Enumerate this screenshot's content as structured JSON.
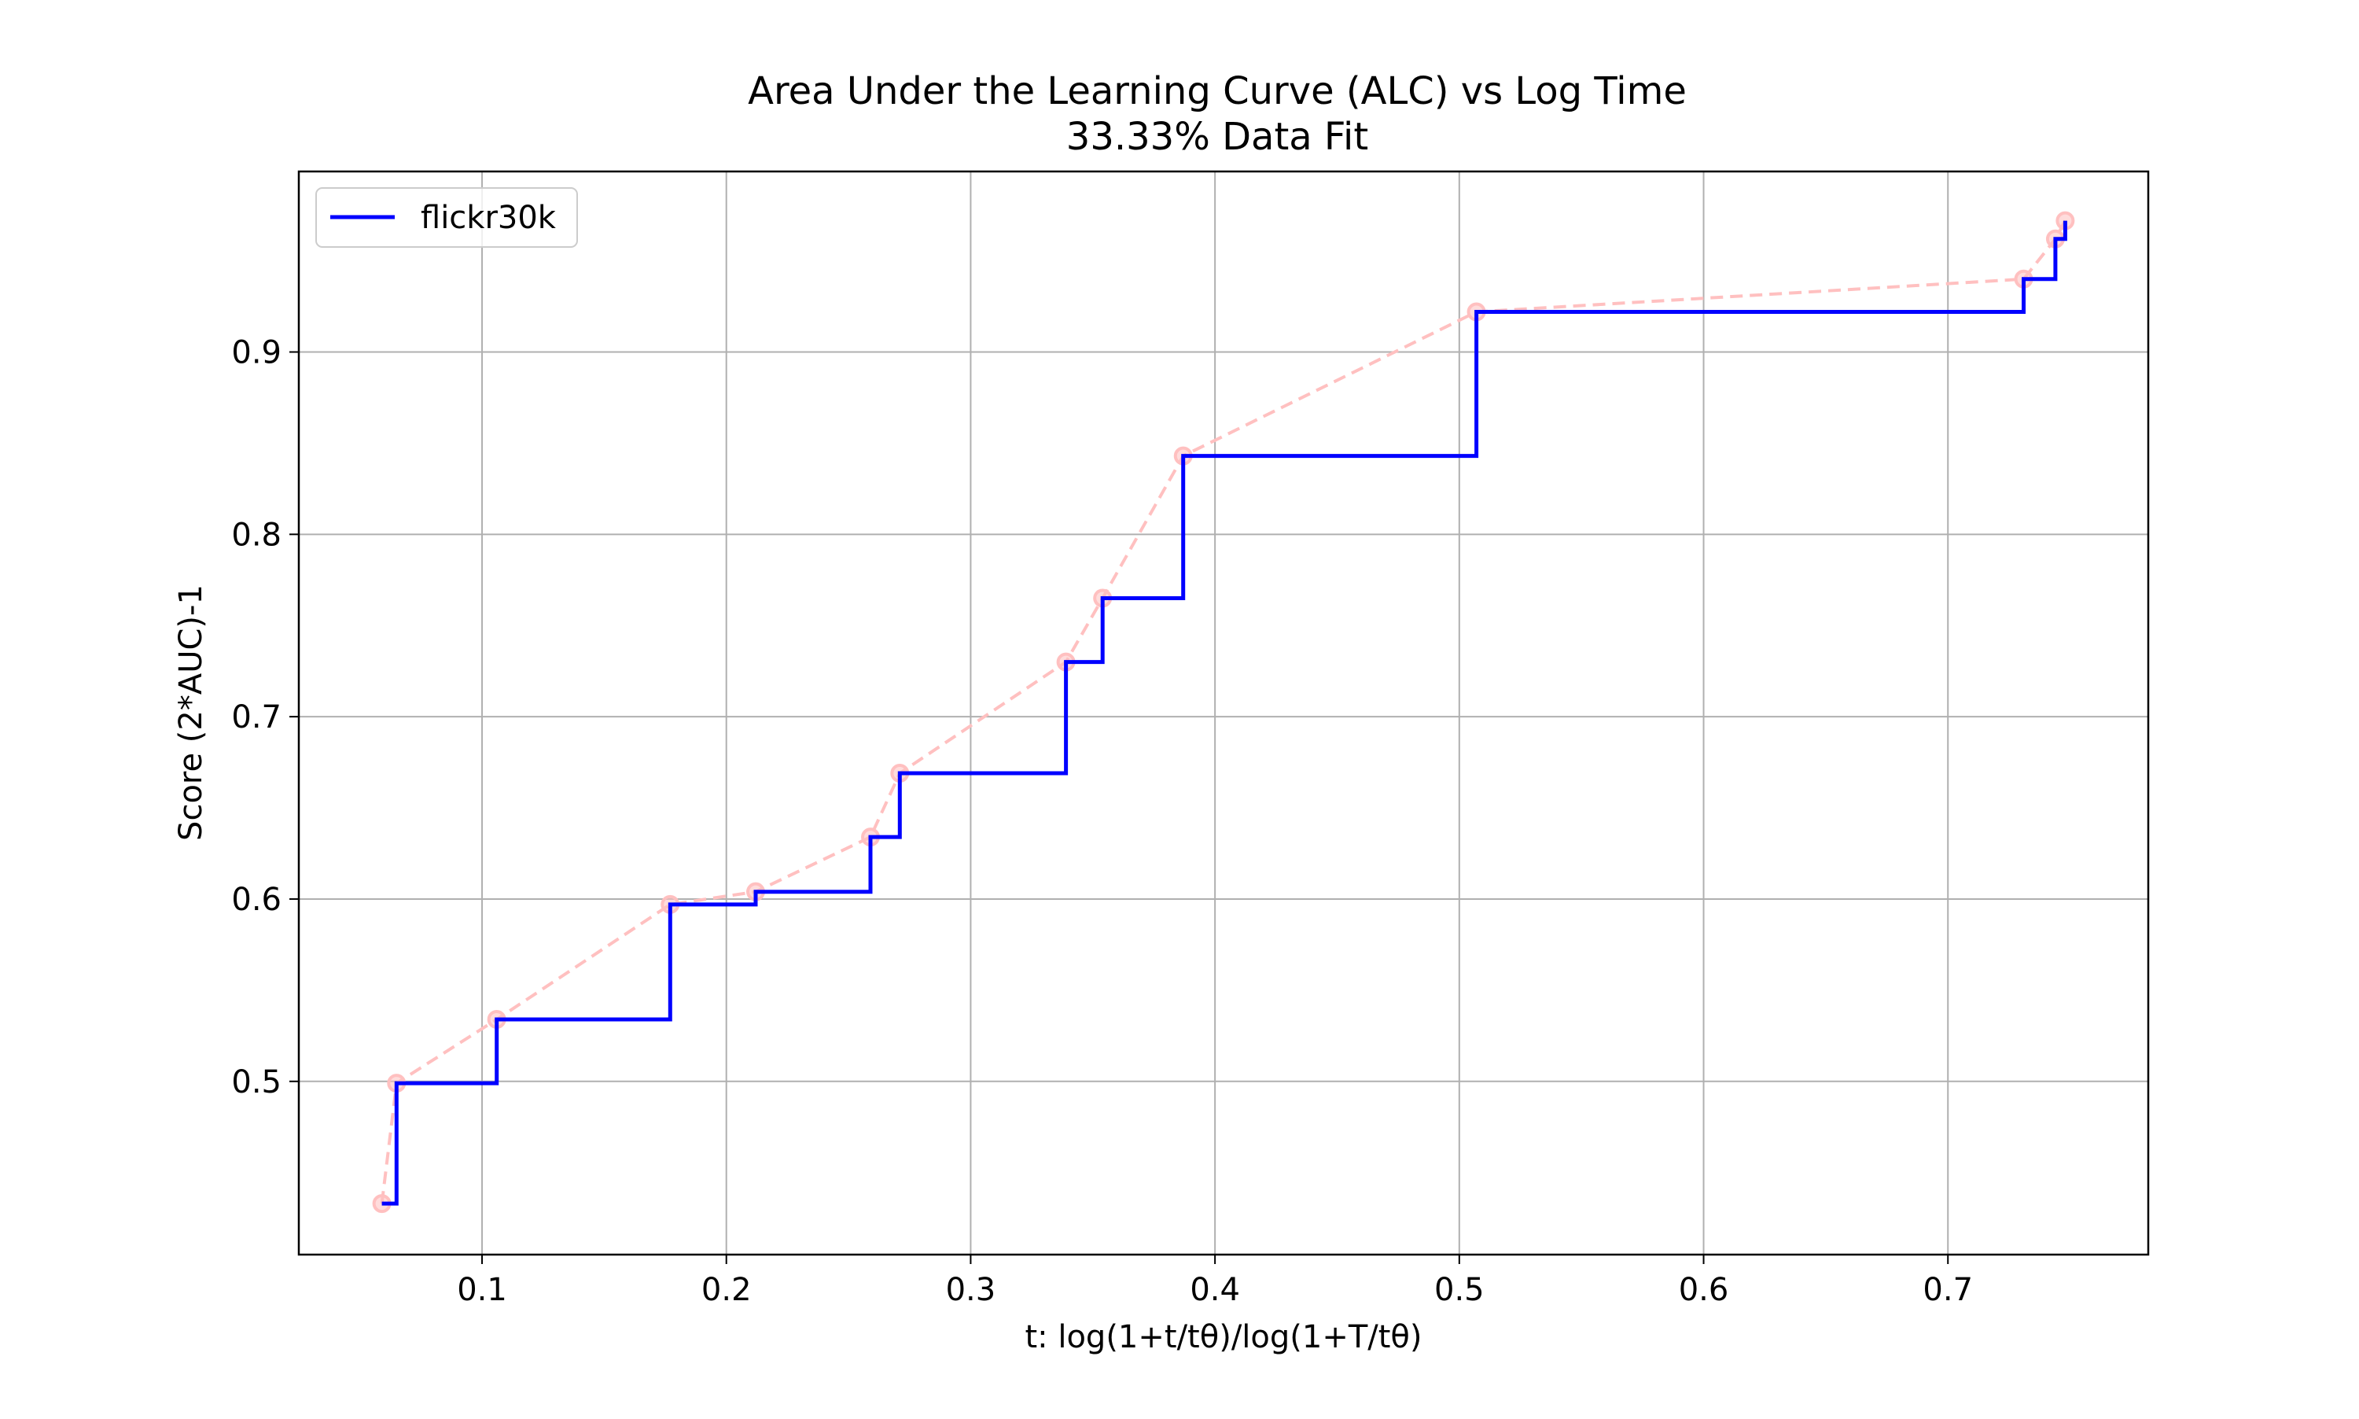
{
  "chart_data": {
    "type": "line",
    "title": "Area Under the Learning Curve (ALC) vs Log Time",
    "subtitle": "33.33% Data Fit",
    "xlabel": "t: log(1+t/tθ)/log(1+T/tθ)",
    "ylabel": "Score (2*AUC)-1",
    "xlim": [
      0.025,
      0.782
    ],
    "ylim": [
      0.405,
      0.999
    ],
    "xticks": [
      0.1,
      0.2,
      0.3,
      0.4,
      0.5,
      0.6,
      0.7
    ],
    "xtick_labels": [
      "0.1",
      "0.2",
      "0.3",
      "0.4",
      "0.5",
      "0.6",
      "0.7"
    ],
    "yticks": [
      0.5,
      0.6,
      0.7,
      0.8,
      0.9
    ],
    "ytick_labels": [
      "0.5",
      "0.6",
      "0.7",
      "0.8",
      "0.9"
    ],
    "grid": true,
    "legend_position": "top-left",
    "series": [
      {
        "name": "flickr30k",
        "style": "step-post",
        "color": "#0000ff",
        "x": [
          0.059,
          0.065,
          0.106,
          0.177,
          0.212,
          0.259,
          0.271,
          0.339,
          0.354,
          0.387,
          0.507,
          0.731,
          0.744,
          0.748
        ],
        "y": [
          0.433,
          0.499,
          0.534,
          0.597,
          0.604,
          0.634,
          0.669,
          0.73,
          0.765,
          0.843,
          0.922,
          0.94,
          0.962,
          0.972
        ]
      },
      {
        "style": "dashed-markers",
        "color": "#ffc0c0",
        "x": [
          0.059,
          0.065,
          0.106,
          0.177,
          0.212,
          0.259,
          0.271,
          0.339,
          0.354,
          0.387,
          0.507,
          0.731,
          0.744,
          0.748
        ],
        "y": [
          0.433,
          0.499,
          0.534,
          0.597,
          0.604,
          0.634,
          0.669,
          0.73,
          0.765,
          0.843,
          0.922,
          0.94,
          0.962,
          0.972
        ]
      }
    ]
  }
}
